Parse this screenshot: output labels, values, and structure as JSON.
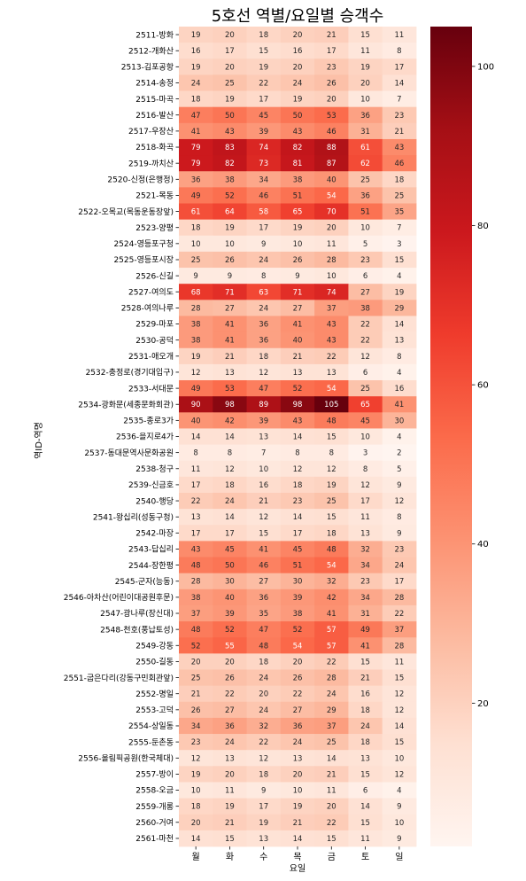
{
  "chart_data": {
    "type": "heatmap",
    "title": "5호선 역별/요일별 승객수",
    "xlabel": "요일",
    "ylabel": "역ID-역명",
    "x_categories": [
      "월",
      "화",
      "수",
      "목",
      "금",
      "토",
      "일"
    ],
    "y_categories": [
      "2511-방화",
      "2512-개화산",
      "2513-김포공항",
      "2514-송정",
      "2515-마곡",
      "2516-발산",
      "2517-우장산",
      "2518-화곡",
      "2519-까치산",
      "2520-신정(은행정)",
      "2521-목동",
      "2522-오목교(목동운동장앞)",
      "2523-양평",
      "2524-영등포구청",
      "2525-영등포시장",
      "2526-신길",
      "2527-여의도",
      "2528-여의나루",
      "2529-마포",
      "2530-공덕",
      "2531-애오개",
      "2532-충정로(경기대입구)",
      "2533-서대문",
      "2534-광화문(세종문화회관)",
      "2535-종로3가",
      "2536-을지로4가",
      "2537-동대문역사문화공원",
      "2538-청구",
      "2539-신금호",
      "2540-행당",
      "2541-왕십리(성동구청)",
      "2542-마장",
      "2543-답십리",
      "2544-장한평",
      "2545-군자(능동)",
      "2546-아차산(어린이대공원후문)",
      "2547-광나루(장신대)",
      "2548-천호(풍납토성)",
      "2549-강동",
      "2550-길동",
      "2551-굽은다리(강동구민회관앞)",
      "2552-명일",
      "2553-고덕",
      "2554-상일동",
      "2555-둔촌동",
      "2556-올림픽공원(한국체대)",
      "2557-방이",
      "2558-오금",
      "2559-개롱",
      "2560-거여",
      "2561-마천"
    ],
    "values": [
      [
        19,
        20,
        18,
        20,
        21,
        15,
        11
      ],
      [
        16,
        17,
        15,
        16,
        17,
        11,
        8
      ],
      [
        19,
        20,
        19,
        20,
        23,
        19,
        17
      ],
      [
        24,
        25,
        22,
        24,
        26,
        20,
        14
      ],
      [
        18,
        19,
        17,
        19,
        20,
        10,
        7
      ],
      [
        47,
        50,
        45,
        50,
        53,
        36,
        23
      ],
      [
        41,
        43,
        39,
        43,
        46,
        31,
        21
      ],
      [
        79,
        83,
        74,
        82,
        88,
        61,
        43
      ],
      [
        79,
        82,
        73,
        81,
        87,
        62,
        46
      ],
      [
        36,
        38,
        34,
        38,
        40,
        25,
        18
      ],
      [
        49,
        52,
        46,
        51,
        54,
        36,
        25
      ],
      [
        61,
        64,
        58,
        65,
        70,
        51,
        35
      ],
      [
        18,
        19,
        17,
        19,
        20,
        10,
        7
      ],
      [
        10,
        10,
        9,
        10,
        11,
        5,
        3
      ],
      [
        25,
        26,
        24,
        26,
        28,
        23,
        15
      ],
      [
        9,
        9,
        8,
        9,
        10,
        6,
        4
      ],
      [
        68,
        71,
        63,
        71,
        74,
        27,
        19
      ],
      [
        28,
        27,
        24,
        27,
        37,
        38,
        29
      ],
      [
        38,
        41,
        36,
        41,
        43,
        22,
        14
      ],
      [
        38,
        41,
        36,
        40,
        43,
        22,
        13
      ],
      [
        19,
        21,
        18,
        21,
        22,
        12,
        8
      ],
      [
        12,
        13,
        12,
        13,
        13,
        6,
        4
      ],
      [
        49,
        53,
        47,
        52,
        54,
        25,
        16
      ],
      [
        90,
        98,
        89,
        98,
        105,
        65,
        41
      ],
      [
        40,
        42,
        39,
        43,
        48,
        45,
        30
      ],
      [
        14,
        14,
        13,
        14,
        15,
        10,
        4
      ],
      [
        8,
        8,
        7,
        8,
        8,
        3,
        2
      ],
      [
        11,
        12,
        10,
        12,
        12,
        8,
        5
      ],
      [
        17,
        18,
        16,
        18,
        19,
        12,
        9
      ],
      [
        22,
        24,
        21,
        23,
        25,
        17,
        12
      ],
      [
        13,
        14,
        12,
        14,
        15,
        11,
        8
      ],
      [
        17,
        17,
        15,
        17,
        18,
        13,
        9
      ],
      [
        43,
        45,
        41,
        45,
        48,
        32,
        23
      ],
      [
        48,
        50,
        46,
        51,
        54,
        34,
        24
      ],
      [
        28,
        30,
        27,
        30,
        32,
        23,
        17
      ],
      [
        38,
        40,
        36,
        39,
        42,
        34,
        28
      ],
      [
        37,
        39,
        35,
        38,
        41,
        31,
        22
      ],
      [
        48,
        52,
        47,
        52,
        57,
        49,
        37
      ],
      [
        52,
        55,
        48,
        54,
        57,
        41,
        28
      ],
      [
        20,
        20,
        18,
        20,
        22,
        15,
        11
      ],
      [
        25,
        26,
        24,
        26,
        28,
        21,
        15
      ],
      [
        21,
        22,
        20,
        22,
        24,
        16,
        12
      ],
      [
        26,
        27,
        24,
        27,
        29,
        18,
        12
      ],
      [
        34,
        36,
        32,
        36,
        37,
        24,
        14
      ],
      [
        23,
        24,
        22,
        24,
        25,
        18,
        15
      ],
      [
        12,
        13,
        12,
        13,
        14,
        13,
        10
      ],
      [
        19,
        20,
        18,
        20,
        21,
        15,
        12
      ],
      [
        10,
        11,
        9,
        10,
        11,
        6,
        4
      ],
      [
        18,
        19,
        17,
        19,
        20,
        14,
        9
      ],
      [
        20,
        21,
        19,
        21,
        22,
        15,
        10
      ],
      [
        14,
        15,
        13,
        14,
        15,
        11,
        9
      ]
    ],
    "colormap": "Reds",
    "colormap_stops": [
      "#fff5f0",
      "#fee0d2",
      "#fcbba1",
      "#fc9272",
      "#fb6a4a",
      "#ef3b2c",
      "#cb181d",
      "#a50f15",
      "#67000d"
    ],
    "value_range": [
      2,
      105
    ],
    "colorbar_ticks": [
      20,
      40,
      60,
      80,
      100
    ],
    "annotations": true,
    "legend": "colorbar-right"
  }
}
